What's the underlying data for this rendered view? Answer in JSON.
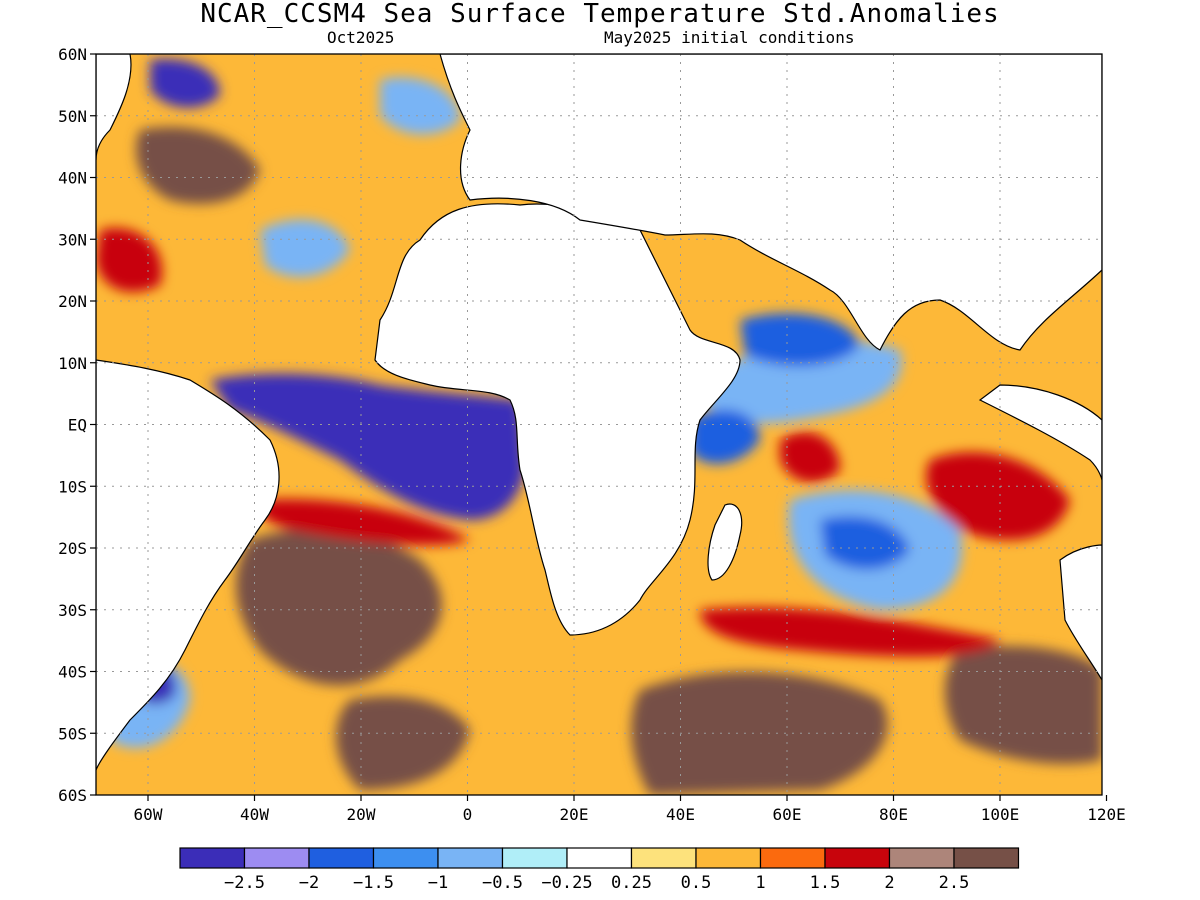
{
  "title": "NCAR_CCSM4 Sea Surface Temperature Std.Anomalies",
  "subtitle_left": "Oct2025",
  "subtitle_right": "May2025 initial conditions",
  "lat_labels": [
    "60N",
    "50N",
    "40N",
    "30N",
    "20N",
    "10N",
    "EQ",
    "10S",
    "20S",
    "30S",
    "40S",
    "50S",
    "60S"
  ],
  "lon_labels": [
    "60W",
    "40W",
    "20W",
    "0",
    "20E",
    "40E",
    "60E",
    "80E",
    "100E",
    "120E"
  ],
  "colorbar": {
    "colors": [
      "#3b2db8",
      "#9d8cf2",
      "#1f5fe0",
      "#3d8ff0",
      "#79b4f5",
      "#b0eef8",
      "#ffffff",
      "#fde27c",
      "#fdb838",
      "#fb6a0e",
      "#c8040c",
      "#ad857a",
      "#765047"
    ],
    "labels": [
      "-2.5",
      "-2",
      "-1.5",
      "-1",
      "-0.5",
      "-0.25",
      "0.25",
      "0.5",
      "1",
      "1.5",
      "2",
      "2.5"
    ]
  },
  "map_colors": {
    "strong_cold": "#3b2db8",
    "cold": "#1f5fe0",
    "cool": "#79b4f5",
    "neutral": "#ffffff",
    "warm": "#fdb838",
    "hot": "#c8040c",
    "very_hot": "#765047",
    "land": "#ffffff",
    "coastline": "#000000",
    "grid": "#999999"
  }
}
